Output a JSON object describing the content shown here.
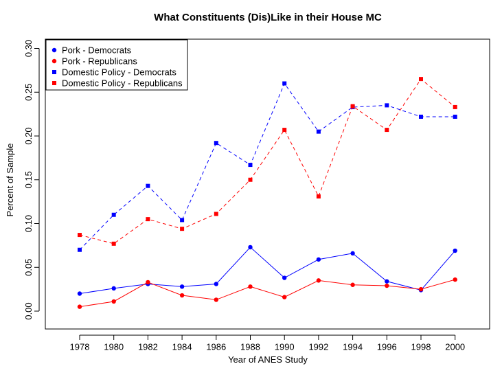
{
  "chart_data": {
    "type": "line",
    "title": "What Constituents (Dis)Like in their House MC",
    "xlabel": "Year of ANES Study",
    "ylabel": "Percent of Sample",
    "x": [
      1978,
      1980,
      1982,
      1984,
      1986,
      1988,
      1990,
      1992,
      1994,
      1996,
      1998,
      2000
    ],
    "x_ticks": [
      "1978",
      "1980",
      "1982",
      "1984",
      "1986",
      "1988",
      "1990",
      "1992",
      "1994",
      "1996",
      "1998",
      "2000"
    ],
    "y_ticks": [
      "0.00",
      "0.05",
      "0.10",
      "0.15",
      "0.20",
      "0.25",
      "0.30"
    ],
    "ylim": [
      0,
      0.3
    ],
    "grid": false,
    "legend_position": "top-left",
    "series": [
      {
        "name": "Pork - Democrats",
        "color": "#0000ff",
        "marker": "circle",
        "line": "solid",
        "values": [
          0.02,
          0.026,
          0.031,
          0.028,
          0.031,
          0.073,
          0.038,
          0.059,
          0.066,
          0.034,
          0.024,
          0.069
        ]
      },
      {
        "name": "Pork - Republicans",
        "color": "#ff0000",
        "marker": "circle",
        "line": "solid",
        "values": [
          0.005,
          0.011,
          0.033,
          0.018,
          0.013,
          0.028,
          0.016,
          0.035,
          0.03,
          0.029,
          0.025,
          0.036
        ]
      },
      {
        "name": "Domestic Policy - Democrats",
        "color": "#0000ff",
        "marker": "square",
        "line": "dashed",
        "values": [
          0.07,
          0.11,
          0.143,
          0.104,
          0.192,
          0.167,
          0.26,
          0.205,
          0.233,
          0.235,
          0.222,
          0.222
        ]
      },
      {
        "name": "Domestic Policy - Republicans",
        "color": "#ff0000",
        "marker": "square",
        "line": "dashed",
        "values": [
          0.087,
          0.077,
          0.105,
          0.094,
          0.111,
          0.15,
          0.207,
          0.131,
          0.234,
          0.207,
          0.265,
          0.233
        ]
      }
    ]
  }
}
